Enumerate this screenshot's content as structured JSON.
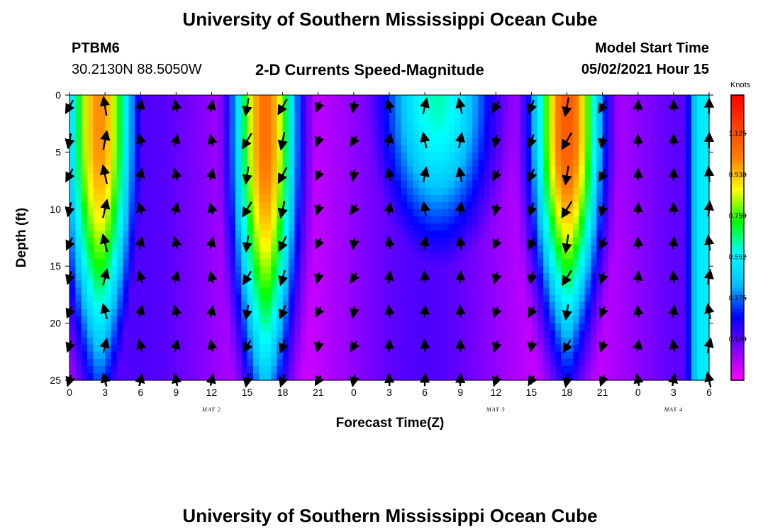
{
  "page": {
    "title_top": "University of Southern Mississippi Ocean Cube",
    "title_bottom": "University of Southern Mississippi Ocean Cube",
    "station": "PTBM6",
    "coords": "30.2130N  88.5050W",
    "subtitle": "2-D Currents Speed-Magnitude",
    "model_label": "Model Start Time",
    "model_time": "05/02/2021 Hour 15"
  },
  "colors": {
    "scale": [
      "#ff00ff",
      "#8000ff",
      "#0000ff",
      "#00c0ff",
      "#00ffff",
      "#00ff00",
      "#ffff00",
      "#ff8000",
      "#ff4000",
      "#ff0000"
    ]
  },
  "chart_data": {
    "type": "heatmap",
    "title": "2-D Currents Speed-Magnitude",
    "xlabel": "Forecast Time(Z)",
    "ylabel": "Depth (ft)",
    "x_tick_labels": [
      "0",
      "3",
      "6",
      "9",
      "12",
      "15",
      "18",
      "21",
      "0",
      "3",
      "6",
      "9",
      "12",
      "15",
      "18",
      "21",
      "0",
      "3",
      "6"
    ],
    "x_range_hours": [
      0,
      54
    ],
    "y_ticks": [
      "0",
      "5",
      "10",
      "15",
      "20",
      "25"
    ],
    "y_range": [
      0,
      25
    ],
    "y_inverted": true,
    "day_labels": [
      {
        "text": "MAY 2",
        "hour": 12
      },
      {
        "text": "MAY 3",
        "hour": 36
      },
      {
        "text": "MAY 4",
        "hour": 51
      }
    ],
    "colorbar": {
      "label": "Knots",
      "ticks": [
        "1.125",
        "0.938",
        "0.750",
        "0.562",
        "0.375",
        "0.188"
      ],
      "tick_values": [
        1.125,
        0.938,
        0.75,
        0.562,
        0.375,
        0.188
      ],
      "range": [
        0,
        1.3
      ]
    },
    "speed_features": [
      {
        "hour": 2.5,
        "depth_ft": 12,
        "width_h": 3.0,
        "depth_ext_ft": 16,
        "peak_knots": 1.0
      },
      {
        "hour": 16.5,
        "depth_ft": 12,
        "width_h": 2.8,
        "depth_ext_ft": 18,
        "peak_knots": 1.05
      },
      {
        "hour": 42.0,
        "depth_ft": 8,
        "width_h": 3.0,
        "depth_ext_ft": 14,
        "peak_knots": 1.1
      }
    ],
    "vectors": {
      "hours": [
        0,
        3,
        6,
        9,
        12,
        15,
        18,
        21,
        24,
        27,
        30,
        33,
        36,
        39,
        42,
        45,
        48,
        51,
        54
      ],
      "depths_ft": [
        1,
        4,
        7,
        10,
        13,
        16,
        19,
        22,
        25
      ],
      "direction_note": "arrows point in current direction; up = north"
    }
  }
}
